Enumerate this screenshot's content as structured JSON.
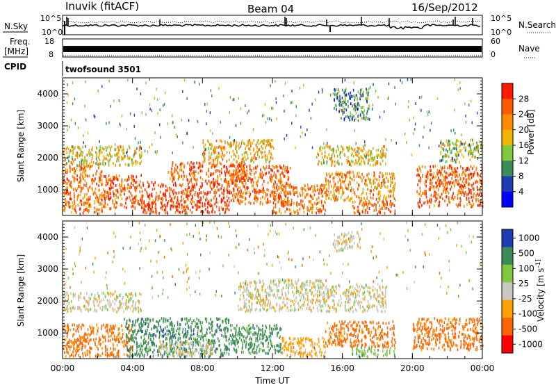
{
  "header": {
    "station": "Inuvik (fitACF)",
    "beam": "Beam 04",
    "date": "16/Sep/2012"
  },
  "status_panels": {
    "nsky_label": "N.Sky",
    "nsearch_label": "N.Search",
    "noise_ticks": [
      "10^5",
      "10^0"
    ],
    "freq_label_line1": "Freq.",
    "freq_label_line2": "[MHz]",
    "freq_ticks": [
      "18",
      "8"
    ],
    "nave_label": "Nave",
    "nave_ticks": [
      "60",
      "0"
    ],
    "cpid_label": "CPID",
    "cpid_value": "twofsound 3501"
  },
  "chart_data": [
    {
      "type": "heatmap",
      "name": "power",
      "ylabel": "Slant Range [km]",
      "ylim": [
        200,
        4500
      ],
      "yticks": [
        "1000",
        "2000",
        "3000",
        "4000"
      ],
      "xticks": [
        "00:00",
        "04:00",
        "08:00",
        "12:00",
        "16:00",
        "20:00",
        "00:00"
      ],
      "xlim_hours": [
        0,
        24
      ],
      "colorbar": {
        "label": "Power [dB]",
        "ticks": [
          "28",
          "24",
          "20",
          "16",
          "12",
          "8",
          "4"
        ],
        "colors": [
          "#ff1a00",
          "#ff5a00",
          "#ff8c00",
          "#f0b400",
          "#7fc840",
          "#3c8c5a",
          "#1e3cb4",
          "#0000ff"
        ]
      },
      "echo_regions": [
        {
          "t0": 0.0,
          "t1": 2.3,
          "r0": 300,
          "r1": 1800,
          "level": 24
        },
        {
          "t0": 2.3,
          "t1": 4.5,
          "r0": 450,
          "r1": 1500,
          "level": 26
        },
        {
          "t0": 4.5,
          "t1": 9.5,
          "r0": 300,
          "r1": 1300,
          "level": 28
        },
        {
          "t0": 6.0,
          "t1": 10.5,
          "r0": 1300,
          "r1": 1900,
          "level": 26
        },
        {
          "t0": 9.5,
          "t1": 13.0,
          "r0": 600,
          "r1": 1800,
          "level": 26
        },
        {
          "t0": 12.0,
          "t1": 15.0,
          "r0": 300,
          "r1": 1200,
          "level": 24
        },
        {
          "t0": 15.0,
          "t1": 19.0,
          "r0": 700,
          "r1": 1600,
          "level": 22
        },
        {
          "t0": 16.5,
          "t1": 19.0,
          "r0": 300,
          "r1": 700,
          "level": 26
        },
        {
          "t0": 20.2,
          "t1": 24.0,
          "r0": 500,
          "r1": 1800,
          "level": 26
        },
        {
          "t0": 0.0,
          "t1": 4.5,
          "r0": 1800,
          "r1": 2400,
          "level": 18
        },
        {
          "t0": 8.0,
          "t1": 12.0,
          "r0": 1900,
          "r1": 2600,
          "level": 20
        },
        {
          "t0": 14.5,
          "t1": 18.5,
          "r0": 1800,
          "r1": 2400,
          "level": 18
        },
        {
          "t0": 21.5,
          "t1": 24.0,
          "r0": 1900,
          "r1": 2600,
          "level": 14
        },
        {
          "t0": 15.5,
          "t1": 17.5,
          "r0": 3200,
          "r1": 4200,
          "level": 10
        }
      ]
    },
    {
      "type": "heatmap",
      "name": "velocity",
      "ylabel": "Slant Range [km]",
      "ylim": [
        200,
        4500
      ],
      "yticks": [
        "1000",
        "2000",
        "3000",
        "4000"
      ],
      "xticks": [
        "00:00",
        "04:00",
        "08:00",
        "12:00",
        "16:00",
        "20:00",
        "00:00"
      ],
      "xlabel": "Time UT",
      "xlim_hours": [
        0,
        24
      ],
      "colorbar": {
        "label": "Velocity [m s^-1]",
        "ticks": [
          "1000",
          "500",
          "100",
          "25",
          "-25",
          "-100",
          "-500",
          "-1000"
        ],
        "colors": [
          "#1e3cb4",
          "#3c8c5a",
          "#7fc840",
          "#c8c8c0",
          "#ffa000",
          "#ff6400",
          "#ff0000"
        ]
      },
      "echo_regions": [
        {
          "t0": 0.0,
          "t1": 4.0,
          "r0": 300,
          "r1": 1300,
          "level": -200
        },
        {
          "t0": 0.0,
          "t1": 4.5,
          "r0": 1700,
          "r1": 2300,
          "level": 0
        },
        {
          "t0": 3.5,
          "t1": 9.5,
          "r0": 300,
          "r1": 1500,
          "level": 300
        },
        {
          "t0": 5.5,
          "t1": 8.5,
          "r0": 300,
          "r1": 800,
          "level": 0
        },
        {
          "t0": 9.5,
          "t1": 12.5,
          "r0": 400,
          "r1": 1300,
          "level": 250
        },
        {
          "t0": 10.0,
          "t1": 15.0,
          "r0": 1700,
          "r1": 2700,
          "level": 0
        },
        {
          "t0": 12.5,
          "t1": 15.0,
          "r0": 300,
          "r1": 900,
          "level": -60
        },
        {
          "t0": 15.0,
          "t1": 19.0,
          "r0": 600,
          "r1": 1400,
          "level": -200
        },
        {
          "t0": 15.0,
          "t1": 18.5,
          "r0": 1700,
          "r1": 2500,
          "level": 0
        },
        {
          "t0": 16.5,
          "t1": 19.0,
          "r0": 300,
          "r1": 600,
          "level": 60
        },
        {
          "t0": 20.0,
          "t1": 24.0,
          "r0": 500,
          "r1": 1500,
          "level": -200
        },
        {
          "t0": 15.5,
          "t1": 17.0,
          "r0": 3600,
          "r1": 4200,
          "level": 0
        }
      ]
    }
  ]
}
